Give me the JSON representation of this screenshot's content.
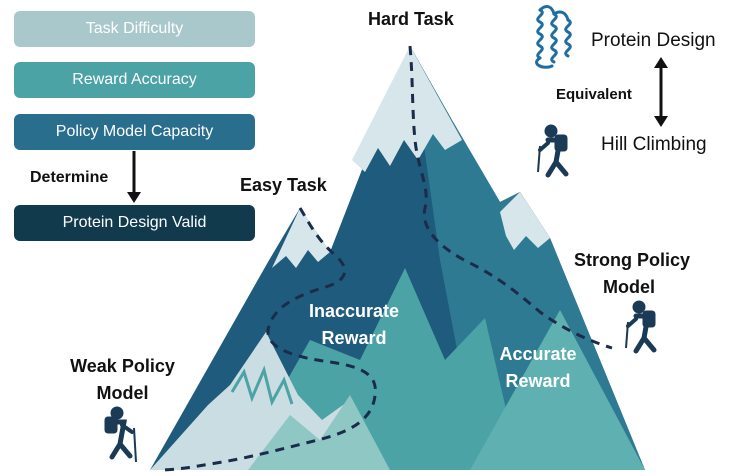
{
  "legend": {
    "factors": [
      "Task Difficulty",
      "Reward Accuracy",
      "Policy Model Capacity"
    ],
    "determine_label": "Determine",
    "outcome": "Protein Design Valid"
  },
  "mountain": {
    "hard_task": "Hard Task",
    "easy_task": "Easy Task",
    "inaccurate_reward": [
      "Inaccurate",
      "Reward"
    ],
    "accurate_reward": [
      "Accurate",
      "Reward"
    ]
  },
  "analogy": {
    "protein_design": "Protein Design",
    "equivalent": "Equivalent",
    "hill_climbing": "Hill Climbing"
  },
  "climbers": {
    "weak": [
      "Weak Policy",
      "Model"
    ],
    "strong": [
      "Strong Policy",
      "Model"
    ]
  },
  "colors": {
    "snow": "#d7e6ea",
    "dark_rock": "#1f5b7c",
    "mid_rock": "#2e7a93",
    "teal": "#4ba3a6",
    "light_teal": "#8fc7c5",
    "path": "#1b2c4a"
  }
}
